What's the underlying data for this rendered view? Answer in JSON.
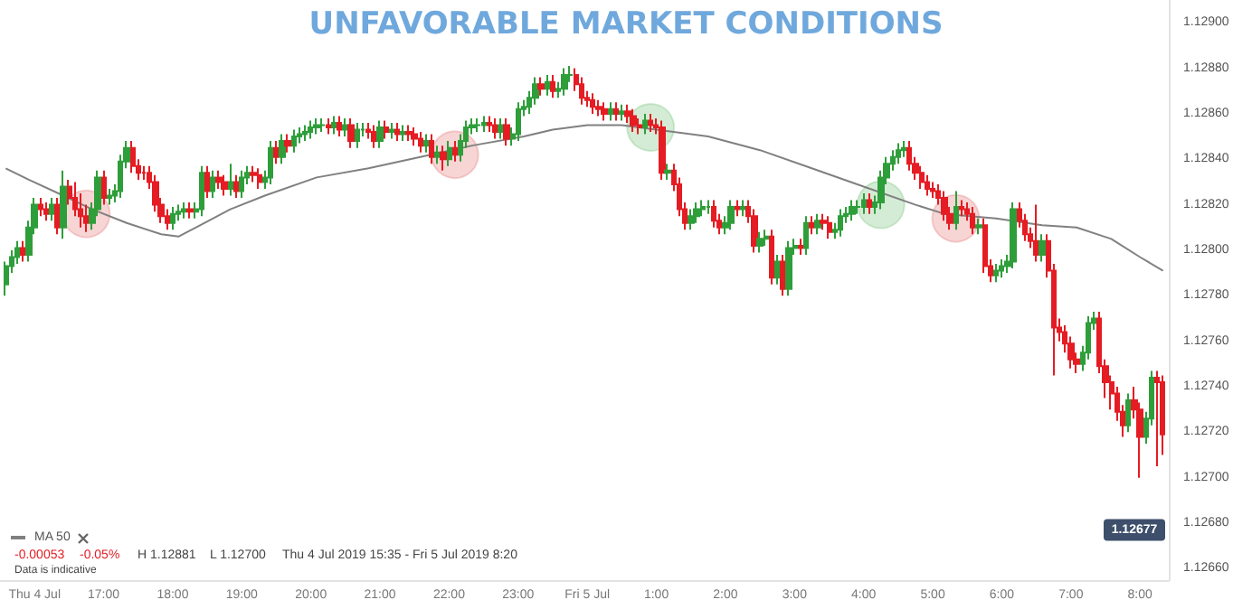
{
  "chart_data": {
    "type": "candlestick",
    "title": "UNFAVORABLE MARKET CONDITIONS",
    "ylim": [
      1.12655,
      1.1291
    ],
    "yticks": [
      {
        "value": 1.1266,
        "label": "1.12660"
      },
      {
        "value": 1.1268,
        "label": "1.12680"
      },
      {
        "value": 1.127,
        "label": "1.12700"
      },
      {
        "value": 1.1272,
        "label": "1.12720"
      },
      {
        "value": 1.1274,
        "label": "1.12740"
      },
      {
        "value": 1.1276,
        "label": "1.12760"
      },
      {
        "value": 1.1278,
        "label": "1.12780"
      },
      {
        "value": 1.128,
        "label": "1.12800"
      },
      {
        "value": 1.1282,
        "label": "1.12820"
      },
      {
        "value": 1.1284,
        "label": "1.12840"
      },
      {
        "value": 1.1286,
        "label": "1.12860"
      },
      {
        "value": 1.1288,
        "label": "1.12880"
      },
      {
        "value": 1.129,
        "label": "1.12900"
      }
    ],
    "xlim": [
      "2019-07-04T15:30",
      "2019-07-05T08:25"
    ],
    "xticks": [
      {
        "value": "2019-07-04T16:00",
        "label": "Thu 4 Jul"
      },
      {
        "value": "2019-07-04T17:00",
        "label": "17:00"
      },
      {
        "value": "2019-07-04T18:00",
        "label": "18:00"
      },
      {
        "value": "2019-07-04T19:00",
        "label": "19:00"
      },
      {
        "value": "2019-07-04T20:00",
        "label": "20:00"
      },
      {
        "value": "2019-07-04T21:00",
        "label": "21:00"
      },
      {
        "value": "2019-07-04T22:00",
        "label": "22:00"
      },
      {
        "value": "2019-07-04T23:00",
        "label": "23:00"
      },
      {
        "value": "2019-07-05T00:00",
        "label": "Fri 5 Jul"
      },
      {
        "value": "2019-07-05T01:00",
        "label": "1:00"
      },
      {
        "value": "2019-07-05T02:00",
        "label": "2:00"
      },
      {
        "value": "2019-07-05T03:00",
        "label": "3:00"
      },
      {
        "value": "2019-07-05T04:00",
        "label": "4:00"
      },
      {
        "value": "2019-07-05T05:00",
        "label": "5:00"
      },
      {
        "value": "2019-07-05T06:00",
        "label": "6:00"
      },
      {
        "value": "2019-07-05T07:00",
        "label": "7:00"
      },
      {
        "value": "2019-07-05T08:00",
        "label": "8:00"
      }
    ],
    "legend": "bottom left",
    "annotations": [
      "-0.00053",
      "-0.05%",
      "H 1.12881",
      "L 1.12700",
      "Thu 4 Jul 2019 15:35 - Fri 5 Jul 2019 8:20",
      "Data is indicative",
      {
        "text": "1.12677",
        "y": 1.12677
      }
    ],
    "series": [
      {
        "colors": [
          "#2e9e3a",
          "#2e9e3a",
          "#2e9e3a",
          "#e51c23",
          "#2e9e3a",
          "#2e9e3a",
          "#e51c23",
          "#e51c23",
          "#2e9e3a",
          "#e51c23",
          "#2e9e3a",
          "#e51c23",
          "#e51c23",
          "#e51c23",
          "#e51c23",
          "#2e9e3a",
          "#2e9e3a",
          "#e51c23",
          "#2e9e3a",
          "#2e9e3a",
          "#2e9e3a",
          "#2e9e3a",
          "#e51c23",
          "#e51c23",
          "#e51c23",
          "#e51c23",
          "#e51c23",
          "#e51c23",
          "#e51c23",
          "#2e9e3a",
          "#2e9e3a",
          "#2e9e3a",
          "#e51c23",
          "#2e9e3a",
          "#2e9e3a",
          "#e51c23",
          "#2e9e3a",
          "#e51c23",
          "#e51c23",
          "#2e9e3a",
          "#e51c23",
          "#2e9e3a",
          "#2e9e3a",
          "#e51c23",
          "#e51c23",
          "#2e9e3a",
          "#2e9e3a",
          "#e51c23",
          "#2e9e3a",
          "#e51c23",
          "#2e9e3a",
          "#2e9e3a",
          "#2e9e3a",
          "#2e9e3a",
          "#2e9e3a",
          "#2e9e3a",
          "#e51c23",
          "#2e9e3a",
          "#e51c23",
          "#2e9e3a",
          "#e51c23",
          "#2e9e3a",
          "#2e9e3a",
          "#e51c23",
          "#e51c23",
          "#2e9e3a",
          "#e51c23",
          "#2e9e3a",
          "#e51c23",
          "#2e9e3a",
          "#e51c23",
          "#e51c23",
          "#e51c23",
          "#2e9e3a",
          "#e51c23",
          "#2e9e3a",
          "#e51c23",
          "#2e9e3a",
          "#e51c23",
          "#2e9e3a",
          "#2e9e3a",
          "#2e9e3a",
          "#2e9e3a",
          "#2e9e3a",
          "#e51c23",
          "#e51c23",
          "#2e9e3a",
          "#e51c23",
          "#2e9e3a",
          "#2e9e3a",
          "#2e9e3a",
          "#2e9e3a",
          "#2e9e3a",
          "#e51c23",
          "#2e9e3a",
          "#e51c23",
          "#2e9e3a",
          "#2e9e3a",
          "#2e9e3a",
          "#e51c23",
          "#e51c23",
          "#e51c23",
          "#e51c23",
          "#e51c23",
          "#e51c23",
          "#2e9e3a",
          "#e51c23",
          "#2e9e3a",
          "#e51c23",
          "#e51c23",
          "#e51c23",
          "#2e9e3a",
          "#e51c23",
          "#e51c23",
          "#e51c23",
          "#2e9e3a",
          "#e51c23",
          "#e51c23",
          "#e51c23",
          "#2e9e3a",
          "#2e9e3a",
          "#2e9e3a",
          "#2e9e3a",
          "#e51c23",
          "#e51c23",
          "#2e9e3a",
          "#2e9e3a",
          "#e51c23",
          "#2e9e3a",
          "#e51c23",
          "#e51c23",
          "#2e9e3a",
          "#2e9e3a",
          "#e51c23",
          "#2e9e3a",
          "#e51c23",
          "#2e9e3a",
          "#2e9e3a",
          "#e51c23",
          "#2e9e3a",
          "#e51c23",
          "#2e9e3a",
          "#e51c23",
          "#e51c23",
          "#2e9e3a",
          "#2e9e3a",
          "#2e9e3a",
          "#2e9e3a",
          "#2e9e3a",
          "#2e9e3a",
          "#e51c23",
          "#2e9e3a",
          "#2e9e3a",
          "#2e9e3a",
          "#2e9e3a",
          "#2e9e3a",
          "#2e9e3a",
          "#e51c23",
          "#e51c23",
          "#e51c23",
          "#e51c23",
          "#e51c23",
          "#e51c23",
          "#e51c23",
          "#e51c23",
          "#2e9e3a",
          "#e51c23",
          "#e51c23",
          "#e51c23",
          "#2e9e3a",
          "#e51c23",
          "#e51c23",
          "#2e9e3a",
          "#2e9e3a",
          "#2e9e3a",
          "#2e9e3a",
          "#e51c23",
          "#e51c23",
          "#e51c23",
          "#e51c23",
          "#2e9e3a",
          "#e51c23",
          "#e51c23",
          "#e51c23",
          "#e51c23",
          "#e51c23",
          "#e51c23",
          "#2e9e3a",
          "#2e9e3a",
          "#2e9e3a",
          "#e51c23",
          "#e51c23",
          "#e51c23",
          "#e51c23",
          "#e51c23",
          "#2e9e3a",
          "#e51c23",
          "#e51c23",
          "#2e9e3a",
          "#2e9e3a",
          "#e51c23",
          "#e51c23"
        ],
        "x": [
          "2019-07-04T15:35",
          "2019-07-04T15:40",
          "2019-07-04T15:45",
          "2019-07-04T15:50",
          "2019-07-04T15:55",
          "2019-07-04T16:00",
          "2019-07-04T16:05",
          "2019-07-04T16:10",
          "2019-07-04T16:15",
          "2019-07-04T16:20",
          "2019-07-04T16:25",
          "2019-07-04T16:30",
          "2019-07-04T16:35",
          "2019-07-04T16:40",
          "2019-07-04T16:45",
          "2019-07-04T16:50",
          "2019-07-04T16:55",
          "2019-07-04T17:00",
          "2019-07-04T17:05",
          "2019-07-04T17:10",
          "2019-07-04T17:15",
          "2019-07-04T17:20",
          "2019-07-04T17:25",
          "2019-07-04T17:30",
          "2019-07-04T17:35",
          "2019-07-04T17:40",
          "2019-07-04T17:45",
          "2019-07-04T17:50",
          "2019-07-04T17:55",
          "2019-07-04T18:00",
          "2019-07-04T18:05",
          "2019-07-04T18:10",
          "2019-07-04T18:15",
          "2019-07-04T18:20",
          "2019-07-04T18:25",
          "2019-07-04T18:30",
          "2019-07-04T18:35",
          "2019-07-04T18:40",
          "2019-07-04T18:45",
          "2019-07-04T18:50",
          "2019-07-04T18:55",
          "2019-07-04T19:00",
          "2019-07-04T19:05",
          "2019-07-04T19:10",
          "2019-07-04T19:15",
          "2019-07-04T19:20",
          "2019-07-04T19:25",
          "2019-07-04T19:30",
          "2019-07-04T19:35",
          "2019-07-04T19:40",
          "2019-07-04T19:45",
          "2019-07-04T19:50",
          "2019-07-04T19:55",
          "2019-07-04T20:00",
          "2019-07-04T20:05",
          "2019-07-04T20:10",
          "2019-07-04T20:15",
          "2019-07-04T20:20",
          "2019-07-04T20:25",
          "2019-07-04T20:30",
          "2019-07-04T20:35",
          "2019-07-04T20:40",
          "2019-07-04T20:45",
          "2019-07-04T20:50",
          "2019-07-04T20:55",
          "2019-07-04T21:00",
          "2019-07-04T21:05",
          "2019-07-04T21:10",
          "2019-07-04T21:15",
          "2019-07-04T21:20",
          "2019-07-04T21:25",
          "2019-07-04T21:30",
          "2019-07-04T21:35",
          "2019-07-04T21:40",
          "2019-07-04T21:45",
          "2019-07-04T21:50",
          "2019-07-04T21:55",
          "2019-07-04T22:00",
          "2019-07-04T22:05",
          "2019-07-04T22:10",
          "2019-07-04T22:15",
          "2019-07-04T22:20",
          "2019-07-04T22:25",
          "2019-07-04T22:30",
          "2019-07-04T22:35",
          "2019-07-04T22:40",
          "2019-07-04T22:45",
          "2019-07-04T22:50",
          "2019-07-04T22:55",
          "2019-07-04T23:00",
          "2019-07-04T23:05",
          "2019-07-04T23:10",
          "2019-07-04T23:15",
          "2019-07-04T23:20",
          "2019-07-04T23:25",
          "2019-07-04T23:30",
          "2019-07-04T23:35",
          "2019-07-04T23:40",
          "2019-07-04T23:45",
          "2019-07-04T23:50",
          "2019-07-04T23:55",
          "2019-07-05T00:00",
          "2019-07-05T00:05",
          "2019-07-05T00:10",
          "2019-07-05T00:15",
          "2019-07-05T00:20",
          "2019-07-05T00:25",
          "2019-07-05T00:30",
          "2019-07-05T00:35",
          "2019-07-05T00:40",
          "2019-07-05T00:45",
          "2019-07-05T00:50",
          "2019-07-05T00:55",
          "2019-07-05T01:00",
          "2019-07-05T01:05",
          "2019-07-05T01:10",
          "2019-07-05T01:15",
          "2019-07-05T01:20",
          "2019-07-05T01:25",
          "2019-07-05T01:30",
          "2019-07-05T01:35",
          "2019-07-05T01:40",
          "2019-07-05T01:45",
          "2019-07-05T01:50",
          "2019-07-05T01:55",
          "2019-07-05T02:00",
          "2019-07-05T02:05",
          "2019-07-05T02:10",
          "2019-07-05T02:15",
          "2019-07-05T02:20",
          "2019-07-05T02:25",
          "2019-07-05T02:30",
          "2019-07-05T02:35",
          "2019-07-05T02:40",
          "2019-07-05T02:45",
          "2019-07-05T02:50",
          "2019-07-05T02:55",
          "2019-07-05T03:00",
          "2019-07-05T03:05",
          "2019-07-05T03:10",
          "2019-07-05T03:15",
          "2019-07-05T03:20",
          "2019-07-05T03:25",
          "2019-07-05T03:30",
          "2019-07-05T03:35",
          "2019-07-05T03:40",
          "2019-07-05T03:45",
          "2019-07-05T03:50",
          "2019-07-05T03:55",
          "2019-07-05T04:00",
          "2019-07-05T04:05",
          "2019-07-05T04:10",
          "2019-07-05T04:15",
          "2019-07-05T04:20",
          "2019-07-05T04:25",
          "2019-07-05T04:30",
          "2019-07-05T04:35",
          "2019-07-05T04:40",
          "2019-07-05T04:45",
          "2019-07-05T04:50",
          "2019-07-05T04:55",
          "2019-07-05T05:00",
          "2019-07-05T05:05",
          "2019-07-05T05:10",
          "2019-07-05T05:15",
          "2019-07-05T05:20",
          "2019-07-05T05:25",
          "2019-07-05T05:30",
          "2019-07-05T05:35",
          "2019-07-05T05:40",
          "2019-07-05T05:45",
          "2019-07-05T05:50",
          "2019-07-05T05:55",
          "2019-07-05T06:00",
          "2019-07-05T06:05",
          "2019-07-05T06:10",
          "2019-07-05T06:15",
          "2019-07-05T06:20",
          "2019-07-05T06:25",
          "2019-07-05T06:30",
          "2019-07-05T06:35",
          "2019-07-05T06:40",
          "2019-07-05T06:45",
          "2019-07-05T06:50",
          "2019-07-05T06:55",
          "2019-07-05T07:00",
          "2019-07-05T07:05",
          "2019-07-05T07:10",
          "2019-07-05T07:15",
          "2019-07-05T07:20",
          "2019-07-05T07:25",
          "2019-07-05T07:30",
          "2019-07-05T07:35",
          "2019-07-05T07:40",
          "2019-07-05T07:45",
          "2019-07-05T07:50",
          "2019-07-05T07:55",
          "2019-07-05T08:00",
          "2019-07-05T08:05",
          "2019-07-05T08:10",
          "2019-07-05T08:15",
          "2019-07-05T08:20"
        ],
        "ohlc": [
          [
            1.12785,
            1.12795,
            1.1278,
            1.12793
          ],
          [
            1.12793,
            1.128,
            1.1279,
            1.12797
          ],
          [
            1.12797,
            1.12804,
            1.12794,
            1.12801
          ],
          [
            1.12801,
            1.12804,
            1.12795,
            1.12798
          ],
          [
            1.12798,
            1.12813,
            1.12795,
            1.1281
          ],
          [
            1.1281,
            1.12823,
            1.12807,
            1.1282
          ],
          [
            1.1282,
            1.12823,
            1.12815,
            1.12818
          ],
          [
            1.12818,
            1.12821,
            1.12813,
            1.12816
          ],
          [
            1.12816,
            1.12823,
            1.12813,
            1.1282
          ],
          [
            1.1282,
            1.12823,
            1.12807,
            1.1281
          ],
          [
            1.1281,
            1.12835,
            1.12805,
            1.12828
          ],
          [
            1.12828,
            1.12831,
            1.1282,
            1.12823
          ],
          [
            1.12823,
            1.1283,
            1.12815,
            1.12818
          ],
          [
            1.12818,
            1.12825,
            1.1281,
            1.12815
          ],
          [
            1.12815,
            1.1282,
            1.12808,
            1.12812
          ],
          [
            1.12812,
            1.12821,
            1.12809,
            1.12818
          ],
          [
            1.12818,
            1.12835,
            1.12815,
            1.12832
          ],
          [
            1.12832,
            1.12835,
            1.1282,
            1.12823
          ],
          [
            1.12823,
            1.12827,
            1.1282,
            1.12824
          ],
          [
            1.12824,
            1.12829,
            1.12821,
            1.12826
          ],
          [
            1.12826,
            1.12842,
            1.12823,
            1.12839
          ],
          [
            1.12839,
            1.12848,
            1.12836,
            1.12845
          ],
          [
            1.12845,
            1.12848,
            1.12834,
            1.12837
          ],
          [
            1.12837,
            1.1284,
            1.12831,
            1.12834
          ],
          [
            1.12834,
            1.12837,
            1.12831,
            1.12834
          ],
          [
            1.12834,
            1.12837,
            1.12827,
            1.1283
          ],
          [
            1.1283,
            1.12833,
            1.12817,
            1.1282
          ],
          [
            1.1282,
            1.12823,
            1.12812,
            1.12815
          ],
          [
            1.12815,
            1.12818,
            1.12809,
            1.12812
          ],
          [
            1.12812,
            1.12819,
            1.12809,
            1.12816
          ],
          [
            1.12816,
            1.1282,
            1.12813,
            1.12817
          ],
          [
            1.12817,
            1.12821,
            1.12814,
            1.12818
          ],
          [
            1.12818,
            1.12821,
            1.12814,
            1.12817
          ],
          [
            1.12817,
            1.12821,
            1.12814,
            1.12818
          ],
          [
            1.12818,
            1.12837,
            1.12815,
            1.12834
          ],
          [
            1.12834,
            1.12837,
            1.12823,
            1.12826
          ],
          [
            1.12826,
            1.12835,
            1.12823,
            1.12832
          ],
          [
            1.12832,
            1.12835,
            1.12827,
            1.1283
          ],
          [
            1.1283,
            1.12833,
            1.12824,
            1.12827
          ],
          [
            1.12827,
            1.12838,
            1.12824,
            1.1283
          ],
          [
            1.1283,
            1.12833,
            1.12823,
            1.12826
          ],
          [
            1.12826,
            1.12835,
            1.12823,
            1.12832
          ],
          [
            1.12832,
            1.12837,
            1.12829,
            1.12834
          ],
          [
            1.12834,
            1.12837,
            1.1283,
            1.12833
          ],
          [
            1.12833,
            1.12836,
            1.12827,
            1.1283
          ],
          [
            1.1283,
            1.12835,
            1.12827,
            1.12832
          ],
          [
            1.12832,
            1.12848,
            1.12829,
            1.12845
          ],
          [
            1.12845,
            1.12848,
            1.12838,
            1.12841
          ],
          [
            1.12841,
            1.12851,
            1.12838,
            1.12848
          ],
          [
            1.12848,
            1.12851,
            1.12843,
            1.12846
          ],
          [
            1.12846,
            1.12853,
            1.12843,
            1.1285
          ],
          [
            1.1285,
            1.12854,
            1.12847,
            1.12851
          ],
          [
            1.12851,
            1.12855,
            1.12848,
            1.12852
          ],
          [
            1.12852,
            1.12857,
            1.12849,
            1.12854
          ],
          [
            1.12854,
            1.12858,
            1.12851,
            1.12855
          ],
          [
            1.12855,
            1.12858,
            1.12852,
            1.12855
          ],
          [
            1.12855,
            1.12858,
            1.12851,
            1.12854
          ],
          [
            1.12854,
            1.12859,
            1.12851,
            1.12856
          ],
          [
            1.12856,
            1.12859,
            1.1285,
            1.12853
          ],
          [
            1.12853,
            1.12858,
            1.1285,
            1.12855
          ],
          [
            1.12855,
            1.12858,
            1.12845,
            1.12848
          ],
          [
            1.12848,
            1.12856,
            1.12845,
            1.12853
          ],
          [
            1.12853,
            1.12856,
            1.1285,
            1.12853
          ],
          [
            1.12853,
            1.12856,
            1.12849,
            1.12852
          ],
          [
            1.12852,
            1.12855,
            1.12845,
            1.12848
          ],
          [
            1.12848,
            1.12857,
            1.12845,
            1.12854
          ],
          [
            1.12854,
            1.12857,
            1.12849,
            1.12852
          ],
          [
            1.12852,
            1.12856,
            1.12849,
            1.12853
          ],
          [
            1.12853,
            1.12856,
            1.12848,
            1.12851
          ],
          [
            1.12851,
            1.12855,
            1.12848,
            1.12852
          ],
          [
            1.12852,
            1.12855,
            1.12848,
            1.12851
          ],
          [
            1.12851,
            1.12854,
            1.12846,
            1.12849
          ],
          [
            1.12849,
            1.12852,
            1.12843,
            1.12846
          ],
          [
            1.12846,
            1.12851,
            1.12843,
            1.12848
          ],
          [
            1.12848,
            1.12851,
            1.12838,
            1.12841
          ],
          [
            1.12841,
            1.12846,
            1.12838,
            1.12843
          ],
          [
            1.12843,
            1.12846,
            1.12835,
            1.1284
          ],
          [
            1.1284,
            1.12848,
            1.12837,
            1.12845
          ],
          [
            1.12845,
            1.12848,
            1.12839,
            1.12842
          ],
          [
            1.12842,
            1.12851,
            1.12839,
            1.12848
          ],
          [
            1.12848,
            1.12857,
            1.12845,
            1.12854
          ],
          [
            1.12854,
            1.12858,
            1.12851,
            1.12855
          ],
          [
            1.12855,
            1.12858,
            1.12852,
            1.12855
          ],
          [
            1.12855,
            1.12859,
            1.12852,
            1.12856
          ],
          [
            1.12856,
            1.12859,
            1.12852,
            1.12855
          ],
          [
            1.12855,
            1.12858,
            1.12849,
            1.12852
          ],
          [
            1.12852,
            1.12858,
            1.12849,
            1.12855
          ],
          [
            1.12855,
            1.12858,
            1.12846,
            1.12849
          ],
          [
            1.12849,
            1.12854,
            1.12846,
            1.12851
          ],
          [
            1.12851,
            1.12865,
            1.12848,
            1.12862
          ],
          [
            1.12862,
            1.12866,
            1.12859,
            1.12863
          ],
          [
            1.12863,
            1.1287,
            1.1286,
            1.12867
          ],
          [
            1.12867,
            1.12876,
            1.12864,
            1.12873
          ],
          [
            1.12873,
            1.12876,
            1.12868,
            1.12871
          ],
          [
            1.12871,
            1.12877,
            1.12868,
            1.12874
          ],
          [
            1.12874,
            1.12877,
            1.12867,
            1.1287
          ],
          [
            1.1287,
            1.12874,
            1.12867,
            1.12871
          ],
          [
            1.12871,
            1.1288,
            1.12868,
            1.12877
          ],
          [
            1.12877,
            1.12881,
            1.12874,
            1.12877
          ],
          [
            1.12877,
            1.1288,
            1.1287,
            1.12873
          ],
          [
            1.12873,
            1.12876,
            1.12864,
            1.12867
          ],
          [
            1.12867,
            1.1287,
            1.12863,
            1.12866
          ],
          [
            1.12866,
            1.12869,
            1.1286,
            1.12863
          ],
          [
            1.12863,
            1.12866,
            1.12859,
            1.12862
          ],
          [
            1.12862,
            1.12865,
            1.12857,
            1.1286
          ],
          [
            1.1286,
            1.12865,
            1.12857,
            1.12862
          ],
          [
            1.12862,
            1.12865,
            1.12857,
            1.1286
          ],
          [
            1.1286,
            1.12864,
            1.12857,
            1.12861
          ],
          [
            1.12861,
            1.12864,
            1.12856,
            1.12859
          ],
          [
            1.12859,
            1.12862,
            1.12852,
            1.12855
          ],
          [
            1.12855,
            1.12858,
            1.12851,
            1.12854
          ],
          [
            1.12854,
            1.1286,
            1.12851,
            1.12857
          ],
          [
            1.12857,
            1.1286,
            1.12852,
            1.12855
          ],
          [
            1.12855,
            1.12858,
            1.12851,
            1.12854
          ],
          [
            1.12854,
            1.12857,
            1.12831,
            1.12834
          ],
          [
            1.12834,
            1.12838,
            1.12831,
            1.12835
          ],
          [
            1.12835,
            1.12838,
            1.12826,
            1.12829
          ],
          [
            1.12829,
            1.12832,
            1.12815,
            1.12818
          ],
          [
            1.12818,
            1.12821,
            1.12809,
            1.12812
          ],
          [
            1.12812,
            1.12818,
            1.12809,
            1.12815
          ],
          [
            1.12815,
            1.12821,
            1.12812,
            1.12818
          ],
          [
            1.12818,
            1.12822,
            1.12815,
            1.12819
          ],
          [
            1.12819,
            1.12822,
            1.12816,
            1.12819
          ],
          [
            1.12819,
            1.12822,
            1.1281,
            1.12813
          ],
          [
            1.12813,
            1.12816,
            1.12807,
            1.1281
          ],
          [
            1.1281,
            1.12815,
            1.12807,
            1.12812
          ],
          [
            1.12812,
            1.12822,
            1.12809,
            1.12819
          ],
          [
            1.12819,
            1.12822,
            1.12815,
            1.12818
          ],
          [
            1.12818,
            1.12822,
            1.12815,
            1.12819
          ],
          [
            1.12819,
            1.12822,
            1.12812,
            1.12815
          ],
          [
            1.12815,
            1.12818,
            1.12799,
            1.12802
          ],
          [
            1.12802,
            1.12808,
            1.12799,
            1.12805
          ],
          [
            1.12805,
            1.12809,
            1.12802,
            1.12806
          ],
          [
            1.12806,
            1.12809,
            1.12785,
            1.12788
          ],
          [
            1.12788,
            1.12798,
            1.12785,
            1.12795
          ],
          [
            1.12795,
            1.12798,
            1.1278,
            1.12783
          ],
          [
            1.12783,
            1.12804,
            1.1278,
            1.12801
          ],
          [
            1.12801,
            1.12805,
            1.12798,
            1.12802
          ],
          [
            1.12802,
            1.12805,
            1.12798,
            1.12801
          ],
          [
            1.12801,
            1.12815,
            1.12798,
            1.12812
          ],
          [
            1.12812,
            1.12815,
            1.12807,
            1.1281
          ],
          [
            1.1281,
            1.12816,
            1.12807,
            1.12813
          ],
          [
            1.12813,
            1.12816,
            1.12809,
            1.12812
          ],
          [
            1.12812,
            1.12815,
            1.12805,
            1.12808
          ],
          [
            1.12808,
            1.12812,
            1.12805,
            1.12809
          ],
          [
            1.12809,
            1.12818,
            1.12806,
            1.12815
          ],
          [
            1.12815,
            1.12819,
            1.12812,
            1.12816
          ],
          [
            1.12816,
            1.12822,
            1.12813,
            1.12819
          ],
          [
            1.12819,
            1.12822,
            1.12816,
            1.12819
          ],
          [
            1.12819,
            1.12825,
            1.12816,
            1.12822
          ],
          [
            1.12822,
            1.12825,
            1.12816,
            1.12819
          ],
          [
            1.12819,
            1.12824,
            1.12816,
            1.12821
          ],
          [
            1.12821,
            1.12835,
            1.12818,
            1.12832
          ],
          [
            1.12832,
            1.12841,
            1.12829,
            1.12838
          ],
          [
            1.12838,
            1.12844,
            1.12835,
            1.12841
          ],
          [
            1.12841,
            1.12847,
            1.12838,
            1.12844
          ],
          [
            1.12844,
            1.12848,
            1.12841,
            1.12845
          ],
          [
            1.12845,
            1.12848,
            1.12835,
            1.12838
          ],
          [
            1.12838,
            1.12841,
            1.12831,
            1.12834
          ],
          [
            1.12834,
            1.12837,
            1.12827,
            1.1283
          ],
          [
            1.1283,
            1.12833,
            1.12824,
            1.12827
          ],
          [
            1.12827,
            1.1283,
            1.12823,
            1.12826
          ],
          [
            1.12826,
            1.12829,
            1.1282,
            1.12823
          ],
          [
            1.12823,
            1.12826,
            1.12813,
            1.12816
          ],
          [
            1.12816,
            1.12819,
            1.12809,
            1.12812
          ],
          [
            1.12812,
            1.12826,
            1.12809,
            1.12819
          ],
          [
            1.12819,
            1.12822,
            1.12815,
            1.12818
          ],
          [
            1.12818,
            1.12821,
            1.12813,
            1.12816
          ],
          [
            1.12816,
            1.12819,
            1.12807,
            1.1281
          ],
          [
            1.1281,
            1.12814,
            1.12807,
            1.12811
          ],
          [
            1.12811,
            1.12814,
            1.1279,
            1.12793
          ],
          [
            1.12793,
            1.12796,
            1.12786,
            1.12789
          ],
          [
            1.12789,
            1.12794,
            1.12786,
            1.12791
          ],
          [
            1.12791,
            1.12796,
            1.12788,
            1.12793
          ],
          [
            1.12793,
            1.12798,
            1.1279,
            1.12795
          ],
          [
            1.12795,
            1.12821,
            1.12792,
            1.12818
          ],
          [
            1.12818,
            1.12821,
            1.1281,
            1.12813
          ],
          [
            1.12813,
            1.12816,
            1.12804,
            1.12807
          ],
          [
            1.12807,
            1.1281,
            1.12801,
            1.12804
          ],
          [
            1.12804,
            1.1282,
            1.12795,
            1.12798
          ],
          [
            1.12798,
            1.12807,
            1.12795,
            1.12804
          ],
          [
            1.12804,
            1.12807,
            1.12788,
            1.12791
          ],
          [
            1.12791,
            1.12794,
            1.12745,
            1.12766
          ],
          [
            1.12766,
            1.1277,
            1.1276,
            1.12764
          ],
          [
            1.12764,
            1.12767,
            1.12755,
            1.12759
          ],
          [
            1.12759,
            1.12762,
            1.12748,
            1.12752
          ],
          [
            1.12752,
            1.12755,
            1.12746,
            1.1275
          ],
          [
            1.1275,
            1.12758,
            1.12747,
            1.12755
          ],
          [
            1.12755,
            1.12771,
            1.12752,
            1.12768
          ],
          [
            1.12768,
            1.12773,
            1.12765,
            1.1277
          ],
          [
            1.1277,
            1.12773,
            1.12746,
            1.12749
          ],
          [
            1.12749,
            1.12752,
            1.12735,
            1.12742
          ],
          [
            1.12742,
            1.12745,
            1.1273,
            1.12737
          ],
          [
            1.12737,
            1.1274,
            1.12725,
            1.12729
          ],
          [
            1.12729,
            1.12732,
            1.12718,
            1.12723
          ],
          [
            1.12723,
            1.12737,
            1.1272,
            1.12734
          ],
          [
            1.12734,
            1.1274,
            1.12726,
            1.1273
          ],
          [
            1.1273,
            1.12733,
            1.127,
            1.12718
          ],
          [
            1.12718,
            1.12729,
            1.12715,
            1.12726
          ],
          [
            1.12726,
            1.12747,
            1.12723,
            1.12744
          ],
          [
            1.12744,
            1.12747,
            1.12705,
            1.12742
          ],
          [
            1.12742,
            1.12745,
            1.1271,
            1.12719
          ]
        ]
      },
      {
        "type": "line",
        "name": "MA 50",
        "color": "#808080",
        "marker": "none",
        "x": [
          "2019-07-04T15:35",
          "2019-07-04T15:55",
          "2019-07-04T16:25",
          "2019-07-04T16:50",
          "2019-07-04T17:20",
          "2019-07-04T17:50",
          "2019-07-04T18:05",
          "2019-07-04T18:20",
          "2019-07-04T18:50",
          "2019-07-04T19:20",
          "2019-07-04T20:05",
          "2019-07-04T20:50",
          "2019-07-04T21:35",
          "2019-07-04T22:20",
          "2019-07-04T23:05",
          "2019-07-04T23:30",
          "2019-07-05T00:00",
          "2019-07-05T00:30",
          "2019-07-05T01:00",
          "2019-07-05T01:45",
          "2019-07-05T02:30",
          "2019-07-05T03:15",
          "2019-07-05T04:00",
          "2019-07-05T04:45",
          "2019-07-05T05:10",
          "2019-07-05T05:55",
          "2019-07-05T06:35",
          "2019-07-05T07:05",
          "2019-07-05T07:35",
          "2019-07-05T08:00",
          "2019-07-05T08:20"
        ],
        "values": [
          1.12836,
          1.12831,
          1.12824,
          1.12818,
          1.12812,
          1.12807,
          1.12806,
          1.1281,
          1.12818,
          1.12824,
          1.12832,
          1.12836,
          1.12841,
          1.12846,
          1.1285,
          1.12853,
          1.12855,
          1.12855,
          1.12853,
          1.1285,
          1.12844,
          1.12836,
          1.12828,
          1.1282,
          1.12816,
          1.12814,
          1.12811,
          1.1281,
          1.12805,
          1.12797,
          1.12791
        ]
      },
      {
        "type": "scatter",
        "marker": "circle",
        "colors": [
          "#e57373",
          "#e57373",
          "#6fbf73",
          "#6fbf73",
          "#e57373"
        ],
        "x": [
          "2019-07-04T16:45",
          "2019-07-04T22:05",
          "2019-07-05T00:55",
          "2019-07-05T04:15",
          "2019-07-05T05:20"
        ],
        "values": [
          1.12816,
          1.12842,
          1.12854,
          1.1282,
          1.12814
        ]
      }
    ]
  }
}
